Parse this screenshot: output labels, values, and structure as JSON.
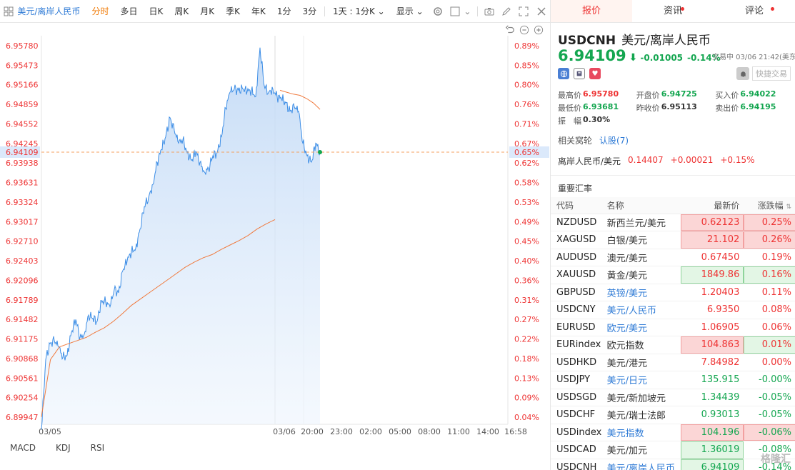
{
  "toolbar": {
    "symbol": "美元/离岸人民币",
    "items": [
      "分时",
      "多日",
      "日K",
      "周K",
      "月K",
      "季K",
      "年K",
      "1分",
      "3分"
    ],
    "period_select": "1天 : 1分K",
    "display_select": "显示"
  },
  "chart_data": {
    "type": "line",
    "y_left_ticks": [
      "6.95780",
      "6.95473",
      "6.95166",
      "6.94859",
      "6.94552",
      "6.94245",
      "6.93938",
      "6.93631",
      "6.93324",
      "6.93017",
      "6.92710",
      "6.92403",
      "6.92096",
      "6.91789",
      "6.91482",
      "6.91175",
      "6.90868",
      "6.90561",
      "6.90254",
      "6.89947"
    ],
    "y_right_ticks": [
      "0.89%",
      "0.85%",
      "0.80%",
      "0.76%",
      "0.71%",
      "0.67%",
      "0.62%",
      "0.58%",
      "0.53%",
      "0.49%",
      "0.45%",
      "0.40%",
      "0.36%",
      "0.31%",
      "0.27%",
      "0.22%",
      "0.18%",
      "0.13%",
      "0.09%",
      "0.04%"
    ],
    "x_ticks": [
      "03/05",
      "03/06",
      "20:00",
      "23:00",
      "02:00",
      "05:00",
      "08:00",
      "11:00",
      "14:00",
      "16:58"
    ],
    "ylim": [
      6.89947,
      6.9578
    ],
    "current_price": "6.94109",
    "current_pct": "0.65%",
    "price_series": [
      6.8975,
      6.9085,
      6.911,
      6.9115,
      6.9105,
      6.9088,
      6.9092,
      6.9128,
      6.9148,
      6.912,
      6.9125,
      6.9155,
      6.915,
      6.9145,
      6.9178,
      6.9175,
      6.9168,
      6.9195,
      6.919,
      6.9225,
      6.924,
      6.9255,
      6.926,
      6.929,
      6.9325,
      6.934,
      6.936,
      6.9395,
      6.9415,
      6.9435,
      6.9465,
      6.9445,
      6.9425,
      6.943,
      6.941,
      6.9398,
      6.9412,
      6.9395,
      6.938,
      6.9385,
      6.9405,
      6.941,
      6.9435,
      6.948,
      6.9505,
      6.951,
      6.9508,
      6.951,
      6.9506,
      6.9508,
      6.9498,
      6.9575,
      6.9515,
      6.9505,
      6.951,
      6.9498,
      6.9495,
      6.9488,
      6.9475,
      6.9482,
      6.9475,
      6.9425,
      6.9405,
      6.9395,
      6.9425,
      6.9411
    ],
    "ma_series": [
      6.8995,
      6.9085,
      6.9105,
      6.911,
      6.9115,
      6.912,
      6.9128,
      6.9135,
      6.9145,
      6.9157,
      6.917,
      6.918,
      6.919,
      6.92,
      6.921,
      6.922,
      6.923,
      6.9238,
      6.9245,
      6.925,
      6.9258,
      6.9265,
      6.9272,
      6.928,
      6.929,
      6.9298,
      6.9305
    ],
    "ma_tail_series": [
      6.9508,
      6.9505,
      6.9502,
      6.95,
      6.9495,
      6.9488,
      6.9478
    ]
  },
  "chart_controls": [
    "undo",
    "zoom-out",
    "zoom-in"
  ],
  "indicators": [
    "MACD",
    "KDJ",
    "RSI"
  ],
  "tabs": [
    {
      "label": "报价"
    },
    {
      "label": "资讯"
    },
    {
      "label": "评论"
    }
  ],
  "quote": {
    "code": "USDCNH",
    "name": "美元/离岸人民币",
    "price": "6.94109",
    "change": "-0.01005",
    "change_pct": "-0.14%",
    "trade_time": "交易中 03/06 21:42(美东",
    "quick_trade": "快捷交易",
    "stats": {
      "high_label": "最高价",
      "high": "6.95780",
      "open_label": "开盘价",
      "open": "6.94725",
      "bid_label": "买入价",
      "bid": "6.94022",
      "low_label": "最低价",
      "low": "6.93681",
      "prev_label": "昨收价",
      "prev": "6.95113",
      "ask_label": "卖出价",
      "ask": "6.94195",
      "amp_label": "振　幅",
      "amp": "0.30%"
    },
    "related_label": "相关窝轮",
    "related_link": "认股(7)",
    "inverse": {
      "name": "离岸人民币/美元",
      "price": "0.14407",
      "change": "+0.00021",
      "pct": "+0.15%"
    }
  },
  "rates": {
    "title": "重要汇率",
    "headers": {
      "code": "代码",
      "name": "名称",
      "last": "最新价",
      "pct": "涨跌幅"
    },
    "rows": [
      {
        "code": "NZDUSD",
        "name": "新西兰元/美元",
        "last": "0.62123",
        "pct": "0.25%",
        "dir": "up",
        "lastHL": "red",
        "pctHL": "red",
        "link": false
      },
      {
        "code": "XAGUSD",
        "name": "白银/美元",
        "last": "21.102",
        "pct": "0.26%",
        "dir": "up",
        "lastHL": "red",
        "pctHL": "red",
        "link": false
      },
      {
        "code": "AUDUSD",
        "name": "澳元/美元",
        "last": "0.67450",
        "pct": "0.19%",
        "dir": "up",
        "lastHL": "",
        "pctHL": "",
        "link": false
      },
      {
        "code": "XAUUSD",
        "name": "黄金/美元",
        "last": "1849.86",
        "pct": "0.16%",
        "dir": "up",
        "lastHL": "green",
        "pctHL": "green",
        "link": false
      },
      {
        "code": "GBPUSD",
        "name": "英镑/美元",
        "last": "1.20403",
        "pct": "0.11%",
        "dir": "up",
        "lastHL": "",
        "pctHL": "",
        "link": true
      },
      {
        "code": "USDCNY",
        "name": "美元/人民币",
        "last": "6.9350",
        "pct": "0.08%",
        "dir": "up",
        "lastHL": "",
        "pctHL": "",
        "link": true
      },
      {
        "code": "EURUSD",
        "name": "欧元/美元",
        "last": "1.06905",
        "pct": "0.06%",
        "dir": "up",
        "lastHL": "",
        "pctHL": "",
        "link": true
      },
      {
        "code": "EURindex",
        "name": "欧元指数",
        "last": "104.863",
        "pct": "0.01%",
        "dir": "up",
        "lastHL": "red",
        "pctHL": "green",
        "link": false
      },
      {
        "code": "USDHKD",
        "name": "美元/港元",
        "last": "7.84982",
        "pct": "0.00%",
        "dir": "up",
        "lastHL": "",
        "pctHL": "",
        "link": false
      },
      {
        "code": "USDJPY",
        "name": "美元/日元",
        "last": "135.915",
        "pct": "-0.00%",
        "dir": "down",
        "lastHL": "",
        "pctHL": "",
        "link": true
      },
      {
        "code": "USDSGD",
        "name": "美元/新加坡元",
        "last": "1.34439",
        "pct": "-0.05%",
        "dir": "down",
        "lastHL": "",
        "pctHL": "",
        "link": false
      },
      {
        "code": "USDCHF",
        "name": "美元/瑞士法郎",
        "last": "0.93013",
        "pct": "-0.05%",
        "dir": "down",
        "lastHL": "",
        "pctHL": "",
        "link": false
      },
      {
        "code": "USDindex",
        "name": "美元指数",
        "last": "104.196",
        "pct": "-0.06%",
        "dir": "down",
        "lastHL": "red",
        "pctHL": "red",
        "link": true
      },
      {
        "code": "USDCAD",
        "name": "美元/加元",
        "last": "1.36019",
        "pct": "-0.08%",
        "dir": "down",
        "lastHL": "green",
        "pctHL": "",
        "link": false
      },
      {
        "code": "USDCNH",
        "name": "美元/离岸人民币",
        "last": "6.94109",
        "pct": "-0.14%",
        "dir": "down",
        "lastHL": "green",
        "pctHL": "",
        "link": true
      }
    ]
  },
  "watermark": "格隆汇",
  "colors": {
    "up": "#e33333",
    "down": "#14a650",
    "line": "#3d8ee6",
    "ma": "#f07b3f",
    "accent": "#f07800"
  }
}
